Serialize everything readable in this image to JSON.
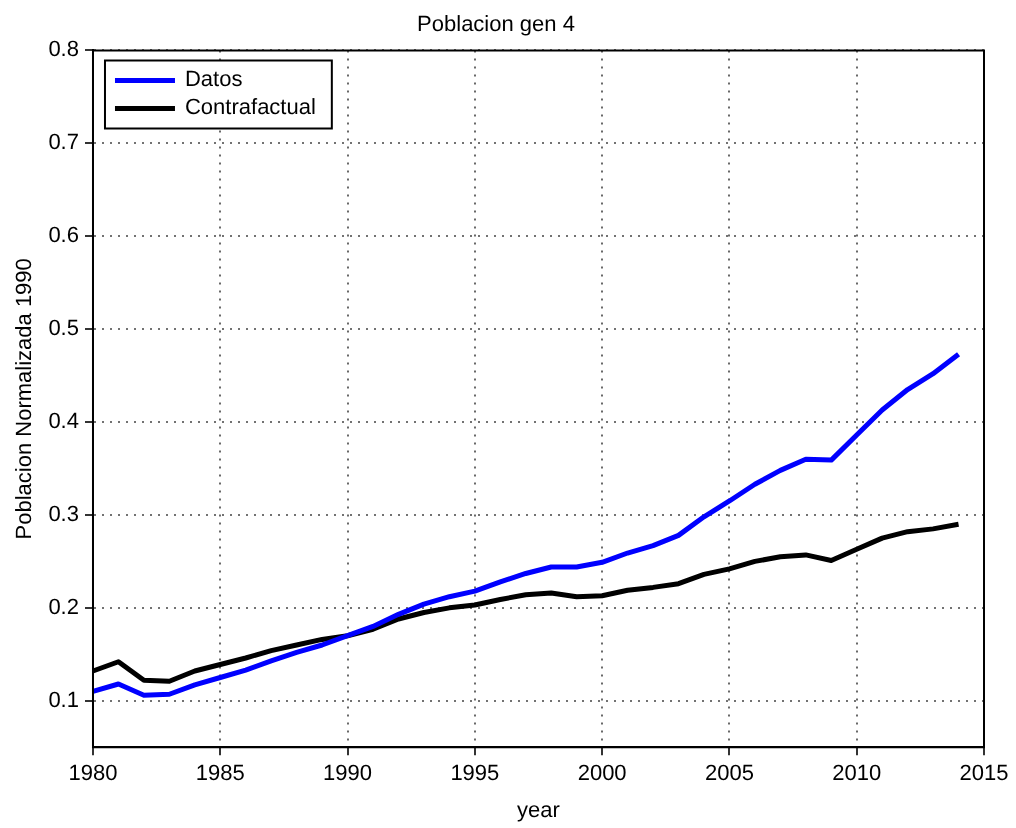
{
  "chart_data": {
    "type": "line",
    "title": "Poblacion gen 4",
    "xlabel": "year",
    "ylabel": "Poblacion Normalizada 1990",
    "x": [
      1980,
      1981,
      1982,
      1983,
      1984,
      1985,
      1986,
      1987,
      1988,
      1989,
      1990,
      1991,
      1992,
      1993,
      1994,
      1995,
      1996,
      1997,
      1998,
      1999,
      2000,
      2001,
      2002,
      2003,
      2004,
      2005,
      2006,
      2007,
      2008,
      2009,
      2010,
      2011,
      2012,
      2013,
      2014
    ],
    "series": [
      {
        "name": "Datos",
        "color": "#0000ff",
        "values": [
          0.11,
          0.118,
          0.106,
          0.107,
          0.117,
          0.125,
          0.133,
          0.143,
          0.152,
          0.16,
          0.17,
          0.18,
          0.193,
          0.204,
          0.212,
          0.218,
          0.228,
          0.237,
          0.244,
          0.244,
          0.249,
          0.259,
          0.267,
          0.278,
          0.298,
          0.315,
          0.333,
          0.348,
          0.36,
          0.359,
          0.386,
          0.413,
          0.435,
          0.452,
          0.473
        ]
      },
      {
        "name": "Contrafactual",
        "color": "#000000",
        "values": [
          0.132,
          0.142,
          0.122,
          0.121,
          0.132,
          0.139,
          0.146,
          0.154,
          0.16,
          0.166,
          0.17,
          0.177,
          0.188,
          0.195,
          0.2,
          0.203,
          0.209,
          0.214,
          0.216,
          0.212,
          0.213,
          0.219,
          0.222,
          0.226,
          0.236,
          0.242,
          0.25,
          0.255,
          0.257,
          0.251,
          0.263,
          0.275,
          0.282,
          0.285,
          0.29
        ]
      }
    ],
    "xlim": [
      1980,
      2015
    ],
    "xticks": [
      1980,
      1985,
      1990,
      1995,
      2000,
      2005,
      2010,
      2015
    ],
    "ylim": [
      0.05,
      0.8
    ],
    "yticks": [
      0.1,
      0.2,
      0.3,
      0.4,
      0.5,
      0.6,
      0.7,
      0.8
    ],
    "grid": true,
    "legend": "top left",
    "marker": "none",
    "line_style": "solid"
  }
}
